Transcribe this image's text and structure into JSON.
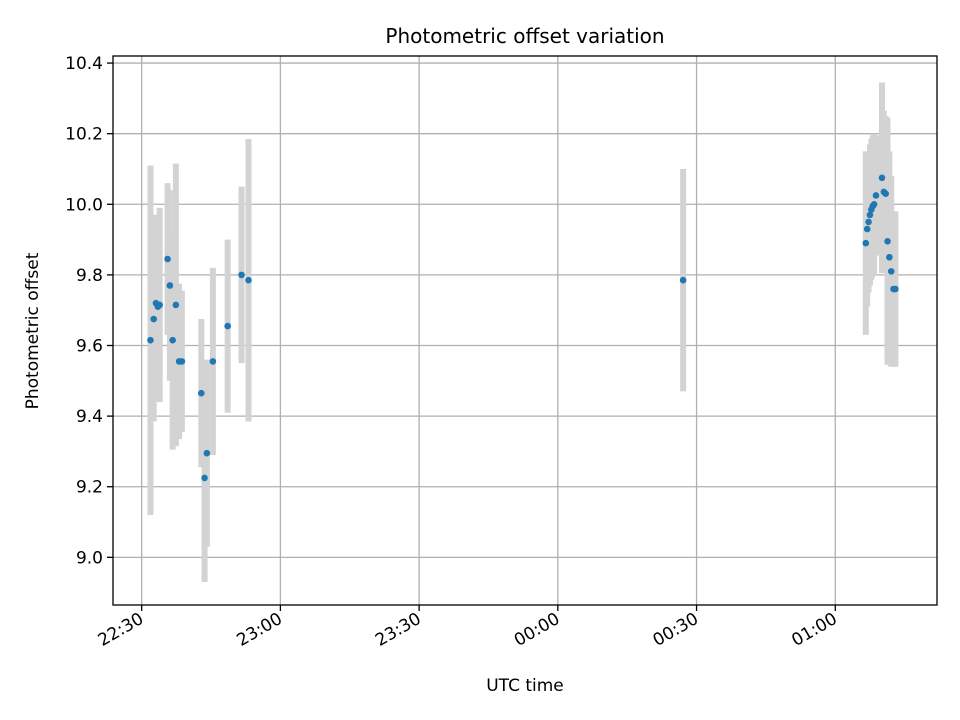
{
  "chart_data": {
    "type": "scatter",
    "title": "Photometric offset variation",
    "xlabel": "UTC time",
    "ylabel": "Photometric offset",
    "x_ticks": [
      "22:30",
      "23:00",
      "23:30",
      "00:00",
      "00:30",
      "01:00"
    ],
    "y_ticks": [
      "9.0",
      "9.2",
      "9.4",
      "9.6",
      "9.8",
      "10.0",
      "10.2",
      "10.4"
    ],
    "x_unit": "minutes after 22:30 UTC",
    "xlim": [
      -6.2,
      172.0
    ],
    "ylim": [
      8.865,
      10.42
    ],
    "grid": true,
    "colors": {
      "points": "#1f77b4",
      "errorbars": "#d3d3d3",
      "grid": "#b0b0b0"
    },
    "points": [
      {
        "x": 1.9,
        "y": 9.615,
        "yerr": 0.495
      },
      {
        "x": 2.6,
        "y": 9.675,
        "yerr": 0.29
      },
      {
        "x": 3.1,
        "y": 9.72,
        "yerr": 0.25
      },
      {
        "x": 3.5,
        "y": 9.71,
        "yerr": 0.26
      },
      {
        "x": 3.9,
        "y": 9.715,
        "yerr": 0.275
      },
      {
        "x": 5.6,
        "y": 9.845,
        "yerr": 0.215
      },
      {
        "x": 6.1,
        "y": 9.77,
        "yerr": 0.27
      },
      {
        "x": 6.7,
        "y": 9.615,
        "yerr": 0.31
      },
      {
        "x": 7.4,
        "y": 9.715,
        "yerr": 0.4
      },
      {
        "x": 8.1,
        "y": 9.555,
        "yerr": 0.22
      },
      {
        "x": 8.7,
        "y": 9.555,
        "yerr": 0.2
      },
      {
        "x": 12.9,
        "y": 9.465,
        "yerr": 0.21
      },
      {
        "x": 13.6,
        "y": 9.225,
        "yerr": 0.295
      },
      {
        "x": 14.1,
        "y": 9.295,
        "yerr": 0.265
      },
      {
        "x": 15.4,
        "y": 9.555,
        "yerr": 0.265
      },
      {
        "x": 18.6,
        "y": 9.655,
        "yerr": 0.245
      },
      {
        "x": 21.6,
        "y": 9.8,
        "yerr": 0.25
      },
      {
        "x": 23.1,
        "y": 9.785,
        "yerr": 0.4
      },
      {
        "x": 117.1,
        "y": 9.785,
        "yerr": 0.315
      },
      {
        "x": 156.6,
        "y": 9.89,
        "yerr": 0.26
      },
      {
        "x": 156.9,
        "y": 9.93,
        "yerr": 0.22
      },
      {
        "x": 157.2,
        "y": 9.95,
        "yerr": 0.2
      },
      {
        "x": 157.5,
        "y": 9.97,
        "yerr": 0.2
      },
      {
        "x": 157.8,
        "y": 9.985,
        "yerr": 0.2
      },
      {
        "x": 158.1,
        "y": 9.995,
        "yerr": 0.2
      },
      {
        "x": 158.4,
        "y": 10.0,
        "yerr": 0.2
      },
      {
        "x": 158.8,
        "y": 10.025,
        "yerr": 0.17
      },
      {
        "x": 160.1,
        "y": 10.075,
        "yerr": 0.27
      },
      {
        "x": 160.5,
        "y": 10.035,
        "yerr": 0.23
      },
      {
        "x": 160.9,
        "y": 10.03,
        "yerr": 0.22
      },
      {
        "x": 161.3,
        "y": 9.895,
        "yerr": 0.35
      },
      {
        "x": 161.7,
        "y": 9.85,
        "yerr": 0.3
      },
      {
        "x": 162.1,
        "y": 9.81,
        "yerr": 0.27
      },
      {
        "x": 162.6,
        "y": 9.76,
        "yerr": 0.22
      },
      {
        "x": 163.0,
        "y": 9.76,
        "yerr": 0.22
      }
    ]
  }
}
